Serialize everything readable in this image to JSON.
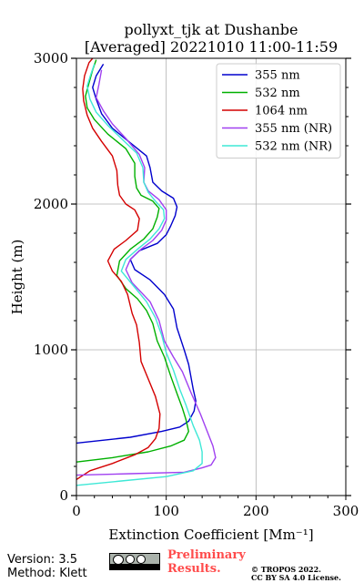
{
  "chart_data": {
    "type": "line",
    "title": "pollyxt_tjk at Dushanbe",
    "subtitle": "[Averaged] 20221010 11:00-11:59",
    "xlabel": "Extinction Coefficient [Mm⁻¹]",
    "ylabel": "Height (m)",
    "xlim": [
      0,
      300
    ],
    "ylim": [
      0,
      3000
    ],
    "x_ticks": [
      "0",
      "100",
      "200",
      "300"
    ],
    "y_ticks": [
      "0",
      "1000",
      "2000",
      "3000"
    ],
    "grid": true,
    "legend_position": "top-right",
    "series": [
      {
        "name": "355 nm",
        "color": "#0000cd",
        "points": [
          [
            0,
            360
          ],
          [
            60,
            400
          ],
          [
            95,
            440
          ],
          [
            115,
            470
          ],
          [
            125,
            510
          ],
          [
            131,
            580
          ],
          [
            133,
            650
          ],
          [
            130,
            730
          ],
          [
            125,
            900
          ],
          [
            120,
            1000
          ],
          [
            112,
            1150
          ],
          [
            108,
            1280
          ],
          [
            98,
            1380
          ],
          [
            82,
            1480
          ],
          [
            65,
            1550
          ],
          [
            60,
            1620
          ],
          [
            70,
            1680
          ],
          [
            90,
            1730
          ],
          [
            100,
            1790
          ],
          [
            105,
            1850
          ],
          [
            110,
            1920
          ],
          [
            112,
            1980
          ],
          [
            108,
            2040
          ],
          [
            95,
            2090
          ],
          [
            85,
            2150
          ],
          [
            82,
            2250
          ],
          [
            78,
            2330
          ],
          [
            60,
            2420
          ],
          [
            40,
            2520
          ],
          [
            28,
            2620
          ],
          [
            22,
            2720
          ],
          [
            18,
            2800
          ],
          [
            22,
            2880
          ],
          [
            30,
            2960
          ]
        ]
      },
      {
        "name": "532 nm",
        "color": "#00b000",
        "points": [
          [
            0,
            230
          ],
          [
            40,
            260
          ],
          [
            80,
            300
          ],
          [
            105,
            340
          ],
          [
            120,
            380
          ],
          [
            125,
            440
          ],
          [
            122,
            520
          ],
          [
            118,
            600
          ],
          [
            112,
            700
          ],
          [
            105,
            820
          ],
          [
            98,
            950
          ],
          [
            90,
            1060
          ],
          [
            85,
            1180
          ],
          [
            78,
            1270
          ],
          [
            68,
            1350
          ],
          [
            55,
            1420
          ],
          [
            45,
            1510
          ],
          [
            48,
            1610
          ],
          [
            60,
            1690
          ],
          [
            75,
            1760
          ],
          [
            85,
            1830
          ],
          [
            90,
            1910
          ],
          [
            92,
            1970
          ],
          [
            85,
            2020
          ],
          [
            72,
            2060
          ],
          [
            67,
            2110
          ],
          [
            65,
            2190
          ],
          [
            65,
            2280
          ],
          [
            55,
            2380
          ],
          [
            35,
            2480
          ],
          [
            20,
            2580
          ],
          [
            12,
            2660
          ],
          [
            10,
            2740
          ],
          [
            14,
            2830
          ],
          [
            18,
            2920
          ],
          [
            22,
            2990
          ]
        ]
      },
      {
        "name": "1064 nm",
        "color": "#d40000",
        "points": [
          [
            0,
            110
          ],
          [
            15,
            170
          ],
          [
            40,
            220
          ],
          [
            65,
            280
          ],
          [
            80,
            330
          ],
          [
            88,
            390
          ],
          [
            92,
            460
          ],
          [
            93,
            560
          ],
          [
            88,
            680
          ],
          [
            80,
            800
          ],
          [
            72,
            920
          ],
          [
            70,
            1050
          ],
          [
            67,
            1170
          ],
          [
            62,
            1250
          ],
          [
            57,
            1380
          ],
          [
            50,
            1470
          ],
          [
            40,
            1540
          ],
          [
            35,
            1610
          ],
          [
            42,
            1690
          ],
          [
            55,
            1750
          ],
          [
            68,
            1820
          ],
          [
            70,
            1900
          ],
          [
            65,
            1960
          ],
          [
            55,
            2000
          ],
          [
            48,
            2060
          ],
          [
            46,
            2130
          ],
          [
            45,
            2230
          ],
          [
            40,
            2330
          ],
          [
            28,
            2430
          ],
          [
            18,
            2520
          ],
          [
            12,
            2610
          ],
          [
            8,
            2710
          ],
          [
            7,
            2790
          ],
          [
            9,
            2880
          ],
          [
            14,
            2970
          ],
          [
            18,
            3000
          ]
        ]
      },
      {
        "name": "355 nm (NR)",
        "color": "#a040f0",
        "points": [
          [
            0,
            140
          ],
          [
            60,
            150
          ],
          [
            120,
            160
          ],
          [
            140,
            190
          ],
          [
            150,
            210
          ],
          [
            155,
            260
          ],
          [
            152,
            340
          ],
          [
            145,
            450
          ],
          [
            138,
            560
          ],
          [
            128,
            700
          ],
          [
            118,
            850
          ],
          [
            108,
            950
          ],
          [
            98,
            1060
          ],
          [
            92,
            1200
          ],
          [
            82,
            1330
          ],
          [
            62,
            1460
          ],
          [
            55,
            1550
          ],
          [
            60,
            1620
          ],
          [
            72,
            1690
          ],
          [
            85,
            1750
          ],
          [
            95,
            1820
          ],
          [
            100,
            1890
          ],
          [
            100,
            1960
          ],
          [
            92,
            2030
          ],
          [
            80,
            2090
          ],
          [
            75,
            2150
          ],
          [
            76,
            2250
          ],
          [
            70,
            2340
          ],
          [
            55,
            2450
          ],
          [
            40,
            2550
          ],
          [
            30,
            2640
          ],
          [
            22,
            2730
          ],
          [
            25,
            2820
          ],
          [
            28,
            2920
          ]
        ]
      },
      {
        "name": "532 nm (NR)",
        "color": "#3ee8d6",
        "points": [
          [
            0,
            70
          ],
          [
            50,
            100
          ],
          [
            100,
            130
          ],
          [
            130,
            170
          ],
          [
            140,
            220
          ],
          [
            140,
            300
          ],
          [
            137,
            380
          ],
          [
            130,
            480
          ],
          [
            122,
            620
          ],
          [
            115,
            730
          ],
          [
            108,
            860
          ],
          [
            100,
            980
          ],
          [
            95,
            1100
          ],
          [
            88,
            1220
          ],
          [
            78,
            1330
          ],
          [
            62,
            1450
          ],
          [
            50,
            1540
          ],
          [
            55,
            1620
          ],
          [
            68,
            1690
          ],
          [
            82,
            1760
          ],
          [
            92,
            1830
          ],
          [
            98,
            1900
          ],
          [
            97,
            1960
          ],
          [
            88,
            2020
          ],
          [
            80,
            2080
          ],
          [
            75,
            2150
          ],
          [
            74,
            2250
          ],
          [
            67,
            2350
          ],
          [
            50,
            2450
          ],
          [
            35,
            2540
          ],
          [
            22,
            2630
          ],
          [
            15,
            2720
          ],
          [
            12,
            2810
          ],
          [
            16,
            2890
          ],
          [
            20,
            2960
          ]
        ]
      }
    ]
  },
  "footer": {
    "version": "Version: 3.5",
    "method": "Method: Klett",
    "preliminary_line1": "Preliminary",
    "preliminary_line2": "Results.",
    "copyright_line1": "© TROPOS 2022.",
    "copyright_line2": "CC BY SA 4.0 License.",
    "preliminary_color": "#ff4c4c"
  }
}
